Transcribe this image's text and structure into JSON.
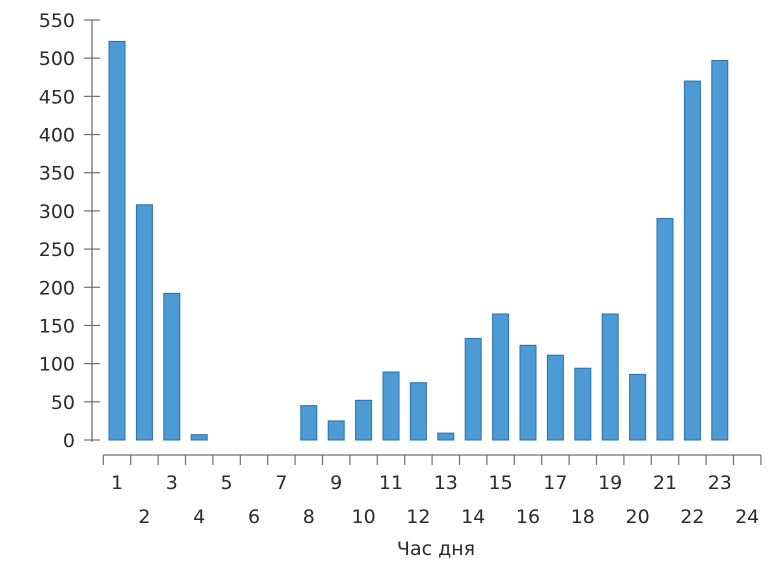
{
  "chart_data": {
    "type": "bar",
    "categories": [
      "1",
      "2",
      "3",
      "4",
      "5",
      "6",
      "7",
      "8",
      "9",
      "10",
      "11",
      "12",
      "13",
      "14",
      "15",
      "16",
      "17",
      "18",
      "19",
      "20",
      "21",
      "22",
      "23",
      "24"
    ],
    "values": [
      522,
      308,
      192,
      7,
      0,
      0,
      0,
      45,
      25,
      52,
      89,
      75,
      9,
      133,
      165,
      124,
      111,
      94,
      165,
      86,
      290,
      470,
      497,
      0
    ],
    "xlabel": "Час дня",
    "ylabel": "",
    "title": "",
    "ylim": [
      0,
      550
    ],
    "yticks": [
      0,
      50,
      100,
      150,
      200,
      250,
      300,
      350,
      400,
      450,
      500,
      550
    ],
    "grid": false,
    "legend": "none",
    "colors": {
      "bar_fill": "#4d9bd5",
      "bar_stroke": "#2a6fa8",
      "axis": "#6f6f6f",
      "text": "#2b2b2b"
    }
  }
}
